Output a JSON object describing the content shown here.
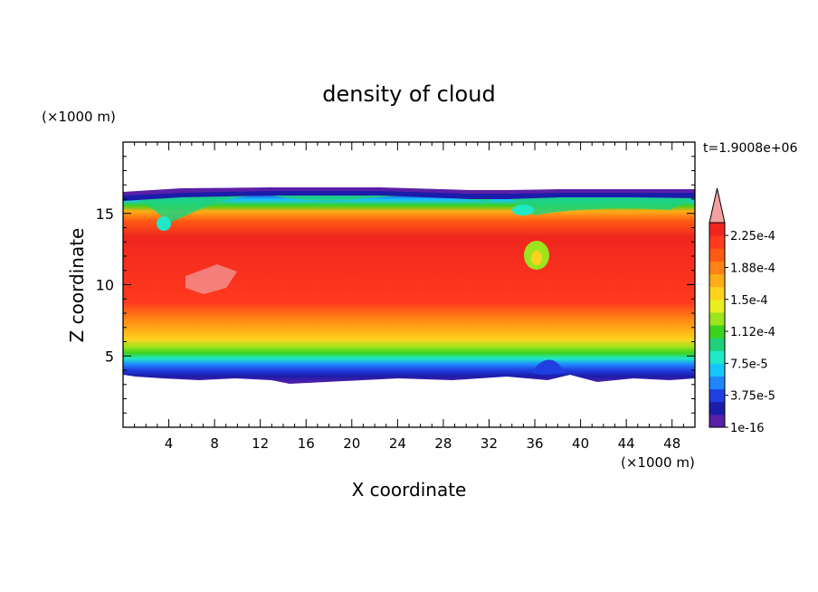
{
  "chart_data": {
    "type": "heatmap",
    "title": "density of cloud",
    "xlabel": "X coordinate",
    "ylabel": "Z coordinate",
    "x_unit": "(×1000 m)",
    "y_unit": "(×1000 m)",
    "time_label": "t=1.9008e+06",
    "xlim": [
      0,
      50
    ],
    "ylim": [
      0,
      20
    ],
    "x_ticks": [
      4,
      8,
      12,
      16,
      20,
      24,
      28,
      32,
      36,
      40,
      44,
      48
    ],
    "y_ticks": [
      5,
      10,
      15
    ],
    "colorbar": {
      "levels": [
        "1e-16",
        "3.75e-5",
        "7.5e-5",
        "1.12e-4",
        "1.5e-4",
        "1.88e-4",
        "2.25e-4"
      ],
      "colors": [
        "#5a1fa8",
        "#1c1caa",
        "#1f3fe0",
        "#1f86ff",
        "#16c7ff",
        "#1ee8c8",
        "#1fd27a",
        "#3cd21e",
        "#9be41e",
        "#e8ef1e",
        "#ffd21e",
        "#ffac16",
        "#ff8214",
        "#ff5a14",
        "#ff3a1e",
        "#f0261e"
      ],
      "overflow_color": "#f2a0a0"
    },
    "cloud_layer": {
      "base_km": 3.7,
      "top_km": 16.5,
      "core_km": [
        9,
        14
      ]
    }
  }
}
